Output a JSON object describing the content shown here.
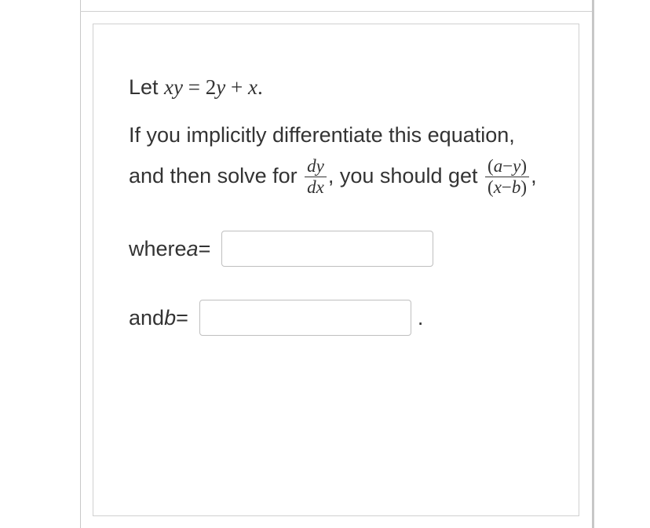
{
  "question": {
    "line1_part1": "Let ",
    "eq_lhs_x": "x",
    "eq_lhs_y": "y",
    "eq_eq": " = ",
    "eq_rhs_2": "2",
    "eq_rhs_y": "y",
    "eq_rhs_plus": " + ",
    "eq_rhs_x": "x",
    "eq_end": ".",
    "line2_part1": "If you implicitly differentiate this equation, and then solve for ",
    "frac1_num": "dy",
    "frac1_den": "dx",
    "line2_part2": ", you should get ",
    "frac2_num_open": "(",
    "frac2_num_a": "a",
    "frac2_num_minus": "−",
    "frac2_num_y": "y",
    "frac2_num_close": ")",
    "frac2_den_open": "(",
    "frac2_den_x": "x",
    "frac2_den_minus": "−",
    "frac2_den_b": "b",
    "frac2_den_close": ")",
    "line2_part3": ",",
    "where_a": "where ",
    "var_a": "a",
    "eq_a": " = ",
    "and_b": "and ",
    "var_b": "b",
    "eq_b": " = ",
    "final_period": "."
  },
  "inputs": {
    "a_value": "",
    "b_value": ""
  },
  "styles": {
    "body_font_size": 27,
    "frac_font_size": 23,
    "text_color": "#333333",
    "border_color": "#d0d0d0",
    "input_border_color": "#bfbfbf",
    "outer_right_border": "#c7c7c7",
    "input_width_a": 270,
    "input_width_b": 270,
    "input_height": 46
  }
}
